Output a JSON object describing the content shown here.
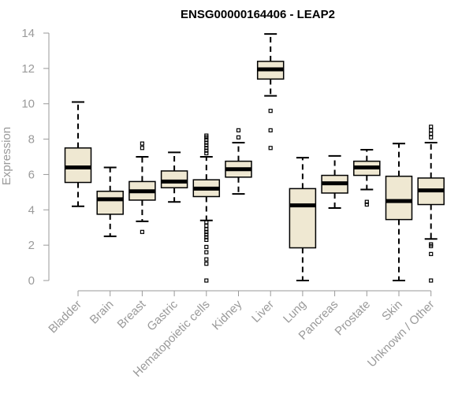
{
  "chart_data": {
    "type": "boxplot",
    "title": "ENSG00000164406 - LEAP2",
    "xlabel": "",
    "ylabel": "Expression",
    "ylim": [
      0,
      14
    ],
    "yticks": [
      0,
      2,
      4,
      6,
      8,
      10,
      12,
      14
    ],
    "colors": {
      "box_fill": "#efe8d2",
      "stroke": "#000000",
      "axis": "#9a9a9a"
    },
    "categories": [
      "Bladder",
      "Brain",
      "Breast",
      "Gastric",
      "Hematopoietic cells",
      "Kidney",
      "Liver",
      "Lung",
      "Pancreas",
      "Prostate",
      "Skin",
      "Unknown / Other"
    ],
    "boxes": [
      {
        "category": "Bladder",
        "whisker_low": 4.2,
        "q1": 5.55,
        "median": 6.4,
        "q3": 7.5,
        "whisker_high": 10.1,
        "outliers": []
      },
      {
        "category": "Brain",
        "whisker_low": 2.5,
        "q1": 3.75,
        "median": 4.6,
        "q3": 5.05,
        "whisker_high": 6.4,
        "outliers": []
      },
      {
        "category": "Breast",
        "whisker_low": 3.35,
        "q1": 4.55,
        "median": 5.05,
        "q3": 5.6,
        "whisker_high": 7.0,
        "outliers": [
          2.75,
          7.5,
          7.75
        ]
      },
      {
        "category": "Gastric",
        "whisker_low": 4.45,
        "q1": 5.25,
        "median": 5.6,
        "q3": 6.2,
        "whisker_high": 7.25,
        "outliers": []
      },
      {
        "category": "Hematopoietic cells",
        "whisker_low": 3.4,
        "q1": 4.75,
        "median": 5.2,
        "q3": 5.7,
        "whisker_high": 7.0,
        "outliers": [
          0.0,
          0.95,
          1.2,
          1.6,
          1.9,
          2.3,
          2.45,
          2.6,
          2.75,
          2.9,
          3.1,
          3.3,
          7.2,
          7.35,
          7.5,
          7.65,
          7.8,
          7.95,
          8.1,
          8.2
        ]
      },
      {
        "category": "Kidney",
        "whisker_low": 4.9,
        "q1": 5.85,
        "median": 6.3,
        "q3": 6.75,
        "whisker_high": 7.8,
        "outliers": [
          8.1,
          8.5
        ]
      },
      {
        "category": "Liver",
        "whisker_low": 10.45,
        "q1": 11.4,
        "median": 11.95,
        "q3": 12.4,
        "whisker_high": 13.95,
        "outliers": [
          7.5,
          8.5,
          9.6
        ]
      },
      {
        "category": "Lung",
        "whisker_low": 0.0,
        "q1": 1.85,
        "median": 4.25,
        "q3": 5.2,
        "whisker_high": 6.95,
        "outliers": []
      },
      {
        "category": "Pancreas",
        "whisker_low": 4.1,
        "q1": 4.95,
        "median": 5.5,
        "q3": 5.95,
        "whisker_high": 7.05,
        "outliers": []
      },
      {
        "category": "Prostate",
        "whisker_low": 5.15,
        "q1": 5.95,
        "median": 6.4,
        "q3": 6.75,
        "whisker_high": 7.4,
        "outliers": [
          4.3,
          4.45
        ]
      },
      {
        "category": "Skin",
        "whisker_low": 0.0,
        "q1": 3.45,
        "median": 4.5,
        "q3": 5.9,
        "whisker_high": 7.75,
        "outliers": []
      },
      {
        "category": "Unknown / Other",
        "whisker_low": 2.35,
        "q1": 4.3,
        "median": 5.1,
        "q3": 5.8,
        "whisker_high": 7.8,
        "outliers": [
          0.0,
          1.5,
          1.95,
          2.05,
          8.1,
          8.3,
          8.5,
          8.7
        ]
      }
    ]
  }
}
